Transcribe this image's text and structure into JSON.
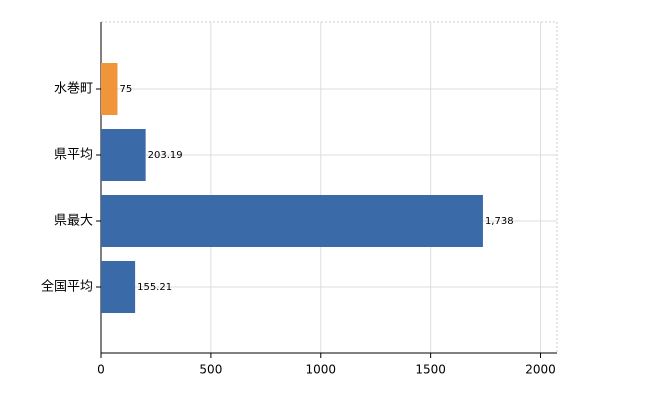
{
  "chart_data": {
    "type": "bar",
    "orientation": "horizontal",
    "categories": [
      "水巻町",
      "県平均",
      "県最大",
      "全国平均"
    ],
    "values": [
      75,
      203.19,
      1738,
      155.21
    ],
    "value_labels": [
      "75",
      "203.19",
      "1,738",
      "155.21"
    ],
    "colors": [
      "#f0953a",
      "#3a6aa8",
      "#3a6aa8",
      "#3a6aa8"
    ],
    "xlim": [
      0,
      2075
    ],
    "xticks": [
      0,
      500,
      1000,
      1500,
      2000
    ],
    "grid": true
  }
}
